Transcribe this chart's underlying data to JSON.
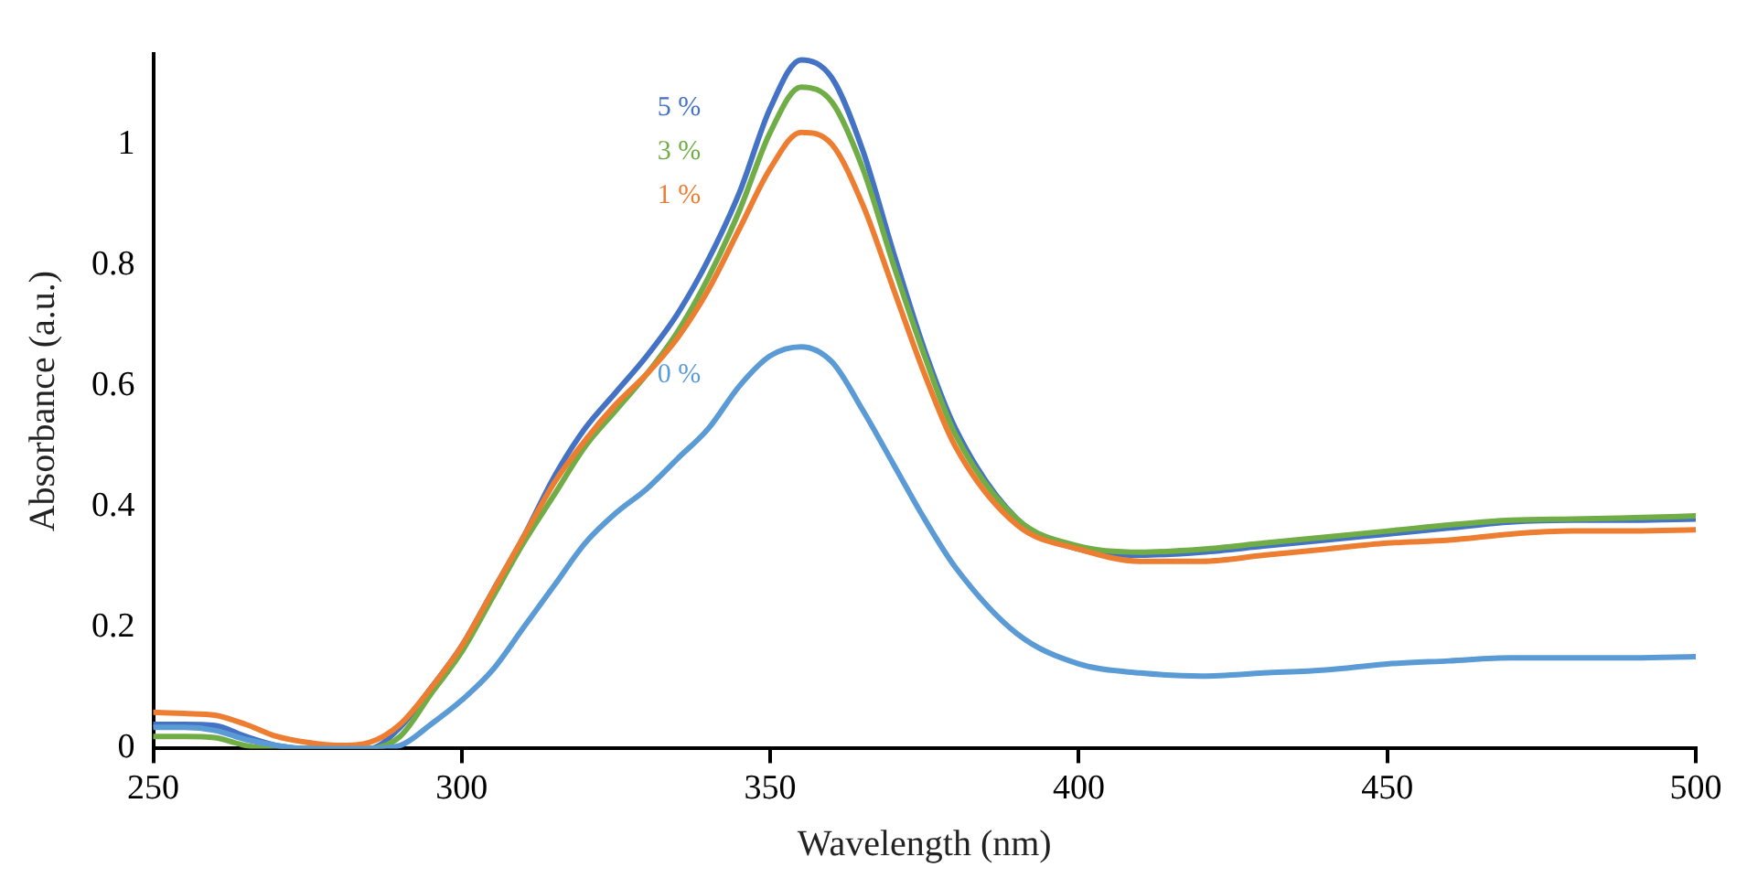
{
  "chart_data": {
    "type": "line",
    "xlabel": "Wavelength (nm)",
    "ylabel": "Absorbance (a.u.)",
    "x": [
      250,
      255,
      260,
      265,
      270,
      275,
      280,
      285,
      290,
      295,
      300,
      305,
      310,
      315,
      320,
      325,
      330,
      335,
      340,
      345,
      350,
      355,
      360,
      365,
      370,
      375,
      380,
      390,
      400,
      410,
      420,
      430,
      440,
      450,
      460,
      470,
      480,
      490,
      500
    ],
    "series": [
      {
        "name": "0 %",
        "color": "#5b9bd5",
        "values": [
          0.035,
          0.035,
          0.03,
          0.015,
          0.005,
          0,
          0,
          0,
          0.005,
          0.04,
          0.08,
          0.13,
          0.2,
          0.27,
          0.34,
          0.39,
          0.43,
          0.48,
          0.53,
          0.6,
          0.65,
          0.665,
          0.64,
          0.56,
          0.47,
          0.38,
          0.3,
          0.19,
          0.14,
          0.125,
          0.12,
          0.125,
          0.13,
          0.14,
          0.145,
          0.15,
          0.15,
          0.15,
          0.152
        ]
      },
      {
        "name": "1 %",
        "color": "#ed7d31",
        "values": [
          0.06,
          0.058,
          0.055,
          0.04,
          0.02,
          0.01,
          0.005,
          0.01,
          0.04,
          0.1,
          0.17,
          0.26,
          0.35,
          0.44,
          0.51,
          0.57,
          0.62,
          0.68,
          0.76,
          0.86,
          0.96,
          1.02,
          1.0,
          0.9,
          0.76,
          0.62,
          0.5,
          0.37,
          0.33,
          0.31,
          0.31,
          0.32,
          0.33,
          0.34,
          0.345,
          0.355,
          0.36,
          0.36,
          0.362
        ]
      },
      {
        "name": "3 %",
        "color": "#70ad47",
        "values": [
          0.02,
          0.02,
          0.018,
          0.005,
          0,
          0,
          0,
          0,
          0.02,
          0.09,
          0.16,
          0.25,
          0.34,
          0.42,
          0.5,
          0.56,
          0.62,
          0.69,
          0.78,
          0.89,
          1.02,
          1.095,
          1.07,
          0.96,
          0.8,
          0.65,
          0.52,
          0.38,
          0.335,
          0.325,
          0.33,
          0.34,
          0.35,
          0.36,
          0.37,
          0.378,
          0.38,
          0.382,
          0.385
        ]
      },
      {
        "name": "5 %",
        "color": "#4472c4",
        "values": [
          0.04,
          0.04,
          0.038,
          0.02,
          0.005,
          0,
          0,
          0,
          0.035,
          0.1,
          0.17,
          0.26,
          0.35,
          0.45,
          0.53,
          0.59,
          0.65,
          0.72,
          0.81,
          0.92,
          1.06,
          1.14,
          1.11,
          0.99,
          0.82,
          0.66,
          0.53,
          0.38,
          0.33,
          0.32,
          0.325,
          0.335,
          0.345,
          0.355,
          0.365,
          0.375,
          0.378,
          0.378,
          0.38
        ]
      }
    ],
    "xlim": [
      250,
      500
    ],
    "xticks": [
      250,
      300,
      350,
      400,
      450,
      500
    ],
    "ylim": [
      0,
      1.15
    ],
    "yticks": [
      0,
      0.2,
      0.4,
      0.6,
      0.8,
      1
    ],
    "grid": false,
    "legend": false,
    "marker": "none",
    "line_style": "solid"
  }
}
